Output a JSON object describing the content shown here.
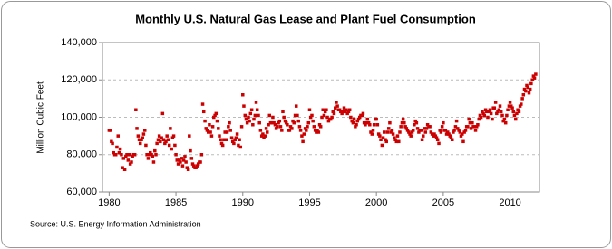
{
  "chart_data": {
    "type": "scatter",
    "title": "Monthly U.S. Natural Gas Lease and Plant Fuel Consumption",
    "y_label": "Million Cubic Feet",
    "source": "Source: U.S. Energy Information Administration",
    "xlim": [
      1979.5,
      2012.2
    ],
    "xticks": [
      1980,
      1985,
      1990,
      1995,
      2000,
      2005,
      2010
    ],
    "ylim": [
      60000,
      140000
    ],
    "yticks": [
      {
        "value": 60000,
        "label": "60,000"
      },
      {
        "value": 80000,
        "label": "80,000"
      },
      {
        "value": 100000,
        "label": "100,000"
      },
      {
        "value": 120000,
        "label": "120,000"
      },
      {
        "value": 140000,
        "label": "140,000"
      }
    ],
    "grid": true,
    "series": [
      {
        "color": "#cc0000",
        "x": [
          1980,
          1980.08,
          1980.17,
          1980.25,
          1980.33,
          1980.42,
          1980.5,
          1980.58,
          1980.67,
          1980.75,
          1980.83,
          1980.92,
          1981,
          1981.08,
          1981.17,
          1981.25,
          1981.33,
          1981.42,
          1981.5,
          1981.58,
          1981.67,
          1981.75,
          1981.83,
          1981.92,
          1982,
          1982.08,
          1982.17,
          1982.25,
          1982.33,
          1982.42,
          1982.5,
          1982.58,
          1982.67,
          1982.75,
          1982.83,
          1982.92,
          1983,
          1983.08,
          1983.17,
          1983.25,
          1983.33,
          1983.42,
          1983.5,
          1983.58,
          1983.67,
          1983.75,
          1983.83,
          1983.92,
          1984,
          1984.08,
          1984.17,
          1984.25,
          1984.33,
          1984.42,
          1984.5,
          1984.58,
          1984.67,
          1984.75,
          1984.83,
          1984.92,
          1985,
          1985.08,
          1985.17,
          1985.25,
          1985.33,
          1985.42,
          1985.5,
          1985.58,
          1985.67,
          1985.75,
          1985.83,
          1985.92,
          1986,
          1986.08,
          1986.17,
          1986.25,
          1986.33,
          1986.42,
          1986.5,
          1986.58,
          1986.67,
          1986.75,
          1986.83,
          1986.92,
          1987,
          1987.08,
          1987.17,
          1987.25,
          1987.33,
          1987.42,
          1987.5,
          1987.58,
          1987.67,
          1987.75,
          1987.83,
          1987.92,
          1988,
          1988.08,
          1988.17,
          1988.25,
          1988.33,
          1988.42,
          1988.5,
          1988.58,
          1988.67,
          1988.75,
          1988.83,
          1988.92,
          1989,
          1989.08,
          1989.17,
          1989.25,
          1989.33,
          1989.42,
          1989.5,
          1989.58,
          1989.67,
          1989.75,
          1989.83,
          1989.92,
          1990,
          1990.08,
          1990.17,
          1990.25,
          1990.33,
          1990.42,
          1990.5,
          1990.58,
          1990.67,
          1990.75,
          1990.83,
          1990.92,
          1991,
          1991.08,
          1991.17,
          1991.25,
          1991.33,
          1991.42,
          1991.5,
          1991.58,
          1991.67,
          1991.75,
          1991.83,
          1991.92,
          1992,
          1992.08,
          1992.17,
          1992.25,
          1992.33,
          1992.42,
          1992.5,
          1992.58,
          1992.67,
          1992.75,
          1992.83,
          1992.92,
          1993,
          1993.08,
          1993.17,
          1993.25,
          1993.33,
          1993.42,
          1993.5,
          1993.58,
          1993.67,
          1993.75,
          1993.83,
          1993.92,
          1994,
          1994.08,
          1994.17,
          1994.25,
          1994.33,
          1994.42,
          1994.5,
          1994.58,
          1994.67,
          1994.75,
          1994.83,
          1994.92,
          1995,
          1995.08,
          1995.17,
          1995.25,
          1995.33,
          1995.42,
          1995.5,
          1995.58,
          1995.67,
          1995.75,
          1995.83,
          1995.92,
          1996,
          1996.08,
          1996.17,
          1996.25,
          1996.33,
          1996.42,
          1996.5,
          1996.58,
          1996.67,
          1996.75,
          1996.83,
          1996.92,
          1997,
          1997.08,
          1997.17,
          1997.25,
          1997.33,
          1997.42,
          1997.5,
          1997.58,
          1997.67,
          1997.75,
          1997.83,
          1997.92,
          1998,
          1998.08,
          1998.17,
          1998.25,
          1998.33,
          1998.42,
          1998.5,
          1998.58,
          1998.67,
          1998.75,
          1998.83,
          1998.92,
          1999,
          1999.08,
          1999.17,
          1999.25,
          1999.33,
          1999.42,
          1999.5,
          1999.58,
          1999.67,
          1999.75,
          1999.83,
          1999.92,
          2000,
          2000.08,
          2000.17,
          2000.25,
          2000.33,
          2000.42,
          2000.5,
          2000.58,
          2000.67,
          2000.75,
          2000.83,
          2000.92,
          2001,
          2001.08,
          2001.17,
          2001.25,
          2001.33,
          2001.42,
          2001.5,
          2001.58,
          2001.67,
          2001.75,
          2001.83,
          2001.92,
          2002,
          2002.08,
          2002.17,
          2002.25,
          2002.33,
          2002.42,
          2002.5,
          2002.58,
          2002.67,
          2002.75,
          2002.83,
          2002.92,
          2003,
          2003.08,
          2003.17,
          2003.25,
          2003.33,
          2003.42,
          2003.5,
          2003.58,
          2003.67,
          2003.75,
          2003.83,
          2003.92,
          2004,
          2004.08,
          2004.17,
          2004.25,
          2004.33,
          2004.42,
          2004.5,
          2004.58,
          2004.67,
          2004.75,
          2004.83,
          2004.92,
          2005,
          2005.08,
          2005.17,
          2005.25,
          2005.33,
          2005.42,
          2005.5,
          2005.58,
          2005.67,
          2005.75,
          2005.83,
          2005.92,
          2006,
          2006.08,
          2006.17,
          2006.25,
          2006.33,
          2006.42,
          2006.5,
          2006.58,
          2006.67,
          2006.75,
          2006.83,
          2006.92,
          2007,
          2007.08,
          2007.17,
          2007.25,
          2007.33,
          2007.42,
          2007.5,
          2007.58,
          2007.67,
          2007.75,
          2007.83,
          2007.92,
          2008,
          2008.08,
          2008.17,
          2008.25,
          2008.33,
          2008.42,
          2008.5,
          2008.58,
          2008.67,
          2008.75,
          2008.83,
          2008.92,
          2009,
          2009.08,
          2009.17,
          2009.25,
          2009.33,
          2009.42,
          2009.5,
          2009.58,
          2009.67,
          2009.75,
          2009.83,
          2009.92,
          2010,
          2010.08,
          2010.17,
          2010.25,
          2010.33,
          2010.42,
          2010.5,
          2010.58,
          2010.67,
          2010.75,
          2010.83,
          2010.92,
          2011,
          2011.08,
          2011.17,
          2011.25,
          2011.33,
          2011.42,
          2011.5,
          2011.58,
          2011.67,
          2011.75,
          2011.83,
          2011.92
        ],
        "values": [
          93000,
          93000,
          87000,
          86000,
          81000,
          80000,
          80000,
          84000,
          90000,
          81000,
          83000,
          80000,
          73000,
          78000,
          72000,
          79000,
          80000,
          77000,
          80000,
          75000,
          76000,
          79000,
          80000,
          80000,
          104000,
          94000,
          90000,
          88000,
          86000,
          88000,
          89000,
          91000,
          93000,
          85000,
          80000,
          78000,
          80000,
          81000,
          80000,
          79000,
          76000,
          82000,
          80000,
          86000,
          88000,
          90000,
          87000,
          89000,
          102000,
          88000,
          86000,
          87000,
          90000,
          88000,
          85000,
          94000,
          83000,
          89000,
          90000,
          85000,
          80000,
          77000,
          75000,
          77000,
          76000,
          78000,
          74000,
          77000,
          79000,
          76000,
          73000,
          72000,
          90000,
          82000,
          78000,
          75000,
          74000,
          73000,
          73000,
          74000,
          75000,
          76000,
          76000,
          80000,
          107000,
          103000,
          98000,
          94000,
          93000,
          92000,
          96000,
          92000,
          90000,
          95000,
          100000,
          101000,
          102000,
          98000,
          94000,
          90000,
          88000,
          86000,
          85000,
          88000,
          92000,
          88000,
          92000,
          95000,
          97000,
          93000,
          89000,
          87000,
          86000,
          88000,
          89000,
          91000,
          85000,
          88000,
          84000,
          95000,
          112000,
          106000,
          101000,
          99000,
          97000,
          100000,
          98000,
          102000,
          104000,
          96000,
          99000,
          101000,
          108000,
          104000,
          101000,
          97000,
          93000,
          90000,
          91000,
          89000,
          90000,
          94000,
          92000,
          96000,
          101000,
          97000,
          97000,
          100000,
          97000,
          96000,
          94000,
          95000,
          97000,
          98000,
          95000,
          93000,
          103000,
          100000,
          98000,
          97000,
          96000,
          93000,
          93000,
          95000,
          94000,
          98000,
          97000,
          101000,
          106000,
          101000,
          98000,
          95000,
          93000,
          90000,
          87000,
          91000,
          94000,
          93000,
          95000,
          97000,
          104000,
          100000,
          101000,
          98000,
          95000,
          93000,
          92000,
          93000,
          92000,
          96000,
          95000,
          100000,
          104000,
          101000,
          103000,
          104000,
          100000,
          98000,
          99000,
          99000,
          100000,
          103000,
          102000,
          105000,
          108000,
          106000,
          104000,
          104000,
          103000,
          102000,
          103000,
          105000,
          103000,
          104000,
          102000,
          103000,
          104000,
          100000,
          98000,
          97000,
          99000,
          95000,
          96000,
          98000,
          99000,
          100000,
          101000,
          101000,
          102000,
          97000,
          96000,
          97000,
          99000,
          97000,
          96000,
          92000,
          91000,
          93000,
          96000,
          99000,
          99000,
          96000,
          91000,
          90000,
          88000,
          85000,
          89000,
          92000,
          88000,
          87000,
          92000,
          94000,
          97000,
          92000,
          93000,
          91000,
          89000,
          88000,
          87000,
          90000,
          87000,
          92000,
          95000,
          97000,
          99000,
          97000,
          95000,
          94000,
          93000,
          92000,
          91000,
          90000,
          92000,
          93000,
          96000,
          98000,
          97000,
          94000,
          92000,
          93000,
          93000,
          88000,
          90000,
          94000,
          92000,
          94000,
          96000,
          95000,
          95000,
          92000,
          91000,
          90000,
          91000,
          90000,
          89000,
          88000,
          86000,
          93000,
          92000,
          95000,
          97000,
          93000,
          93000,
          91000,
          92000,
          91000,
          90000,
          89000,
          88000,
          92000,
          93000,
          95000,
          98000,
          94000,
          93000,
          92000,
          90000,
          91000,
          87000,
          92000,
          93000,
          95000,
          95000,
          99000,
          97000,
          94000,
          97000,
          95000,
          95000,
          93000,
          95000,
          96000,
          99000,
          101000,
          100000,
          103000,
          102000,
          101000,
          104000,
          103000,
          100000,
          103000,
          104000,
          102000,
          99000,
          105000,
          105000,
          108000,
          102000,
          103000,
          104000,
          106000,
          103000,
          101000,
          98000,
          99000,
          97000,
          101000,
          104000,
          106000,
          108000,
          106000,
          105000,
          103000,
          101000,
          99000,
          102000,
          104000,
          103000,
          106000,
          107000,
          110000,
          112000,
          115000,
          114000,
          117000,
          116000,
          113000,
          115000,
          118000,
          120000,
          122000,
          121000,
          123000
        ]
      }
    ]
  }
}
